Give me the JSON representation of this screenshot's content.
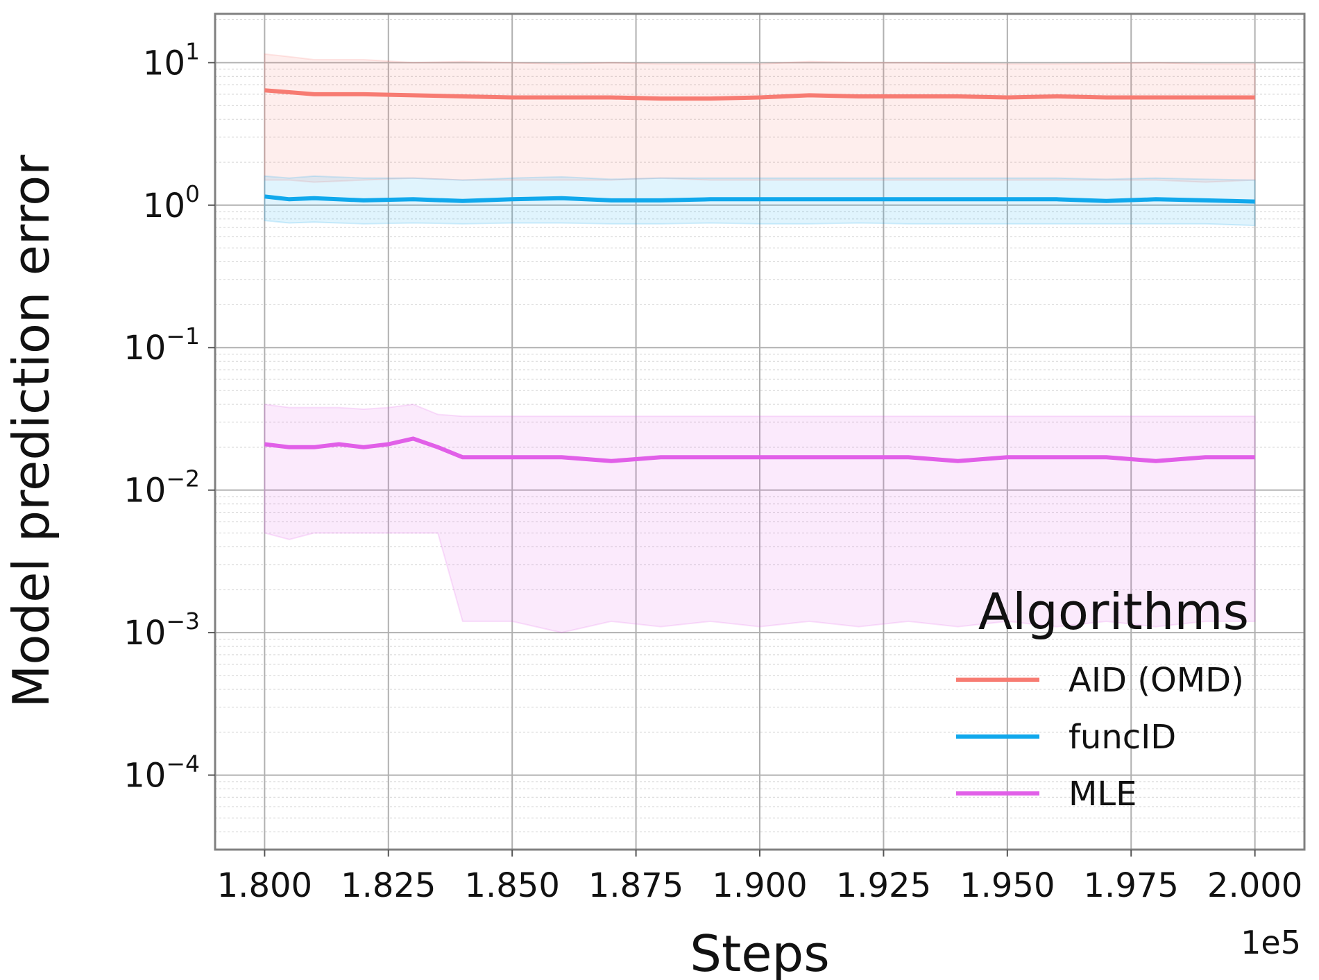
{
  "chart_data": {
    "type": "line",
    "title": "",
    "xlabel": "Steps",
    "ylabel": "Model prediction error",
    "x_offset_label": "1e5",
    "xlim": [
      1.79,
      2.01
    ],
    "ylim": [
      3e-05,
      22
    ],
    "yscale": "log",
    "x_ticks": [
      1.8,
      1.825,
      1.85,
      1.875,
      1.9,
      1.925,
      1.95,
      1.975,
      2.0
    ],
    "x_tick_labels": [
      "1.800",
      "1.825",
      "1.850",
      "1.875",
      "1.900",
      "1.925",
      "1.950",
      "1.975",
      "2.000"
    ],
    "y_ticks": [
      {
        "value": 10,
        "base": "10",
        "exp": "1"
      },
      {
        "value": 1,
        "base": "10",
        "exp": "0"
      },
      {
        "value": 0.1,
        "base": "10",
        "exp": "−1"
      },
      {
        "value": 0.01,
        "base": "10",
        "exp": "−2"
      },
      {
        "value": 0.001,
        "base": "10",
        "exp": "−3"
      },
      {
        "value": 0.0001,
        "base": "10",
        "exp": "−4"
      }
    ],
    "grid": true,
    "legend": {
      "title": "Algorithms",
      "position": "lower-right"
    },
    "series": [
      {
        "name": "AID (OMD)",
        "color": "#f77b72",
        "x": [
          1.8,
          1.805,
          1.81,
          1.82,
          1.83,
          1.84,
          1.85,
          1.86,
          1.87,
          1.88,
          1.89,
          1.9,
          1.91,
          1.92,
          1.93,
          1.94,
          1.95,
          1.96,
          1.97,
          1.98,
          1.99,
          2.0
        ],
        "y": [
          6.4,
          6.2,
          6.0,
          6.0,
          5.9,
          5.8,
          5.7,
          5.7,
          5.7,
          5.6,
          5.6,
          5.7,
          5.9,
          5.8,
          5.8,
          5.8,
          5.7,
          5.8,
          5.7,
          5.7,
          5.7,
          5.7
        ],
        "band_low": [
          1.5,
          1.5,
          1.45,
          1.5,
          1.55,
          1.5,
          1.5,
          1.5,
          1.5,
          1.55,
          1.5,
          1.5,
          1.5,
          1.5,
          1.5,
          1.5,
          1.5,
          1.5,
          1.5,
          1.5,
          1.45,
          1.5
        ],
        "band_high": [
          11.5,
          11.0,
          10.5,
          10.5,
          10.0,
          10.2,
          10.0,
          9.8,
          10.0,
          9.8,
          9.8,
          9.8,
          10.2,
          10.0,
          10.0,
          9.9,
          9.8,
          9.8,
          9.9,
          10.0,
          9.8,
          9.8
        ]
      },
      {
        "name": "funcID",
        "color": "#10a8ec",
        "x": [
          1.8,
          1.805,
          1.81,
          1.82,
          1.83,
          1.84,
          1.85,
          1.86,
          1.87,
          1.88,
          1.89,
          1.9,
          1.91,
          1.92,
          1.93,
          1.94,
          1.95,
          1.96,
          1.97,
          1.98,
          1.99,
          2.0
        ],
        "y": [
          1.15,
          1.1,
          1.12,
          1.08,
          1.1,
          1.07,
          1.1,
          1.12,
          1.08,
          1.08,
          1.1,
          1.1,
          1.1,
          1.1,
          1.1,
          1.1,
          1.1,
          1.1,
          1.07,
          1.1,
          1.08,
          1.06
        ],
        "band_low": [
          0.78,
          0.75,
          0.76,
          0.74,
          0.75,
          0.74,
          0.75,
          0.75,
          0.74,
          0.74,
          0.75,
          0.74,
          0.74,
          0.75,
          0.74,
          0.74,
          0.74,
          0.74,
          0.74,
          0.74,
          0.74,
          0.72
        ],
        "band_high": [
          1.6,
          1.55,
          1.6,
          1.55,
          1.55,
          1.5,
          1.55,
          1.58,
          1.52,
          1.55,
          1.55,
          1.55,
          1.55,
          1.55,
          1.55,
          1.55,
          1.55,
          1.55,
          1.52,
          1.55,
          1.52,
          1.5
        ]
      },
      {
        "name": "MLE",
        "color": "#e15fe8",
        "x": [
          1.8,
          1.805,
          1.81,
          1.815,
          1.82,
          1.825,
          1.83,
          1.835,
          1.84,
          1.85,
          1.86,
          1.87,
          1.88,
          1.89,
          1.9,
          1.91,
          1.92,
          1.93,
          1.94,
          1.95,
          1.96,
          1.97,
          1.98,
          1.99,
          2.0
        ],
        "y": [
          0.021,
          0.02,
          0.02,
          0.021,
          0.02,
          0.021,
          0.023,
          0.02,
          0.017,
          0.017,
          0.017,
          0.016,
          0.017,
          0.017,
          0.017,
          0.017,
          0.017,
          0.017,
          0.016,
          0.017,
          0.017,
          0.017,
          0.016,
          0.017,
          0.017
        ],
        "band_low": [
          0.005,
          0.0045,
          0.005,
          0.005,
          0.005,
          0.005,
          0.005,
          0.005,
          0.0012,
          0.0012,
          0.001,
          0.0012,
          0.0011,
          0.0012,
          0.0011,
          0.0012,
          0.0011,
          0.0012,
          0.0011,
          0.0012,
          0.0011,
          0.0012,
          0.0011,
          0.0012,
          0.0012
        ],
        "band_high": [
          0.04,
          0.038,
          0.038,
          0.038,
          0.037,
          0.038,
          0.04,
          0.034,
          0.033,
          0.033,
          0.033,
          0.033,
          0.033,
          0.033,
          0.033,
          0.033,
          0.033,
          0.033,
          0.033,
          0.033,
          0.033,
          0.033,
          0.033,
          0.033,
          0.033
        ]
      }
    ]
  }
}
